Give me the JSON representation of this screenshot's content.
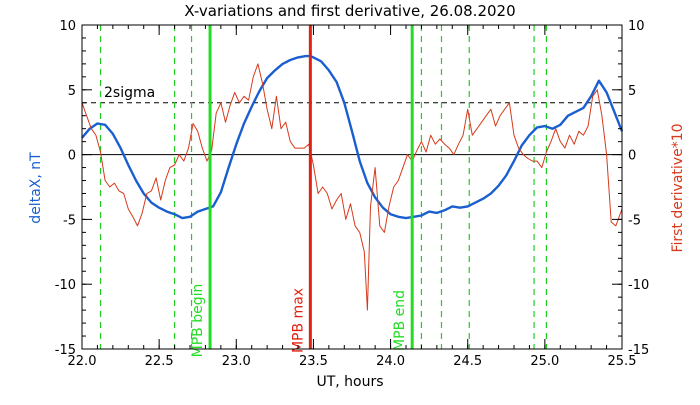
{
  "chart_data": {
    "type": "line",
    "title": "X-variations and first derivative, 26.08.2020",
    "xlabel": "UT, hours",
    "ylabel_left": "deltaX, nT",
    "ylabel_right": "First derivative*10",
    "xlim": [
      22.0,
      25.5
    ],
    "ylim": [
      -15,
      10
    ],
    "x_ticks": [
      22.0,
      22.5,
      23.0,
      23.5,
      24.0,
      24.5,
      25.0,
      25.5
    ],
    "y_ticks": [
      10,
      5,
      0,
      -5,
      -10,
      -15
    ],
    "x_tick_labels": [
      "22.0",
      "22.5",
      "23.0",
      "23.5",
      "24.0",
      "24.5",
      "25.0",
      "25.5"
    ],
    "y_tick_labels": [
      "10",
      "5",
      "0",
      "-5",
      "-10",
      "-15"
    ],
    "colors": {
      "deltaX": "#1a5fd0",
      "derivative": "#d63a1c",
      "mpb_bounds": "#22dd22",
      "mpb_max": "#e02010",
      "green_dashed": "#22cc22",
      "axes": "#000000"
    },
    "threshold": {
      "label": "2sigma",
      "value": 4.0
    },
    "zero_line": 0,
    "vertical_markers": [
      {
        "label": "MPB begin",
        "x": 22.83,
        "color": "#22dd22"
      },
      {
        "label": "MPB max",
        "x": 23.48,
        "color": "#e02010"
      },
      {
        "label": "MPB end",
        "x": 24.14,
        "color": "#22dd22"
      }
    ],
    "green_dashed_x": [
      22.12,
      22.6,
      22.71,
      22.83,
      24.14,
      24.2,
      24.33,
      24.51,
      24.93,
      25.01
    ],
    "series": [
      {
        "name": "deltaX, nT",
        "axis": "left",
        "x": [
          22.0,
          22.05,
          22.1,
          22.15,
          22.2,
          22.25,
          22.3,
          22.35,
          22.4,
          22.45,
          22.5,
          22.55,
          22.6,
          22.65,
          22.7,
          22.75,
          22.8,
          22.85,
          22.9,
          22.95,
          23.0,
          23.05,
          23.1,
          23.15,
          23.2,
          23.25,
          23.3,
          23.35,
          23.4,
          23.45,
          23.48,
          23.5,
          23.55,
          23.6,
          23.65,
          23.7,
          23.75,
          23.8,
          23.85,
          23.9,
          23.95,
          24.0,
          24.05,
          24.1,
          24.15,
          24.2,
          24.25,
          24.3,
          24.35,
          24.4,
          24.45,
          24.5,
          24.55,
          24.6,
          24.65,
          24.7,
          24.75,
          24.8,
          24.85,
          24.9,
          24.95,
          25.0,
          25.05,
          25.1,
          25.15,
          25.2,
          25.25,
          25.3,
          25.35,
          25.4,
          25.45,
          25.5
        ],
        "y": [
          1.3,
          2.0,
          2.4,
          2.3,
          1.6,
          0.5,
          -0.8,
          -2.0,
          -3.0,
          -3.7,
          -4.1,
          -4.4,
          -4.6,
          -4.9,
          -4.8,
          -4.4,
          -4.2,
          -4.0,
          -2.9,
          -1.0,
          0.8,
          2.4,
          3.7,
          4.9,
          5.9,
          6.5,
          7.0,
          7.3,
          7.5,
          7.6,
          7.6,
          7.5,
          7.2,
          6.5,
          5.6,
          4.0,
          1.8,
          -0.5,
          -2.2,
          -3.3,
          -4.1,
          -4.6,
          -4.8,
          -4.9,
          -4.8,
          -4.7,
          -4.4,
          -4.5,
          -4.3,
          -4.0,
          -4.1,
          -4.0,
          -3.7,
          -3.4,
          -3.0,
          -2.4,
          -1.6,
          -0.5,
          0.7,
          1.5,
          2.1,
          2.2,
          2.0,
          2.3,
          3.0,
          3.3,
          3.6,
          4.5,
          5.7,
          4.8,
          3.3,
          1.8
        ]
      },
      {
        "name": "First derivative*10",
        "axis": "right",
        "x": [
          22.0,
          22.03,
          22.06,
          22.09,
          22.12,
          22.15,
          22.18,
          22.21,
          22.24,
          22.27,
          22.3,
          22.33,
          22.36,
          22.39,
          22.42,
          22.45,
          22.48,
          22.51,
          22.54,
          22.57,
          22.6,
          22.63,
          22.66,
          22.69,
          22.72,
          22.75,
          22.78,
          22.81,
          22.84,
          22.87,
          22.9,
          22.93,
          22.96,
          22.99,
          23.02,
          23.05,
          23.08,
          23.11,
          23.14,
          23.17,
          23.2,
          23.23,
          23.26,
          23.29,
          23.32,
          23.35,
          23.38,
          23.41,
          23.44,
          23.47,
          23.5,
          23.53,
          23.56,
          23.59,
          23.62,
          23.65,
          23.68,
          23.71,
          23.74,
          23.77,
          23.8,
          23.83,
          23.85,
          23.87,
          23.9,
          23.93,
          23.96,
          23.99,
          24.02,
          24.05,
          24.08,
          24.11,
          24.14,
          24.17,
          24.2,
          24.23,
          24.26,
          24.29,
          24.32,
          24.35,
          24.38,
          24.41,
          24.44,
          24.47,
          24.5,
          24.53,
          24.56,
          24.59,
          24.62,
          24.65,
          24.68,
          24.71,
          24.74,
          24.77,
          24.8,
          24.83,
          24.86,
          24.89,
          24.92,
          24.95,
          24.98,
          25.01,
          25.04,
          25.07,
          25.1,
          25.13,
          25.16,
          25.19,
          25.22,
          25.25,
          25.28,
          25.31,
          25.34,
          25.37,
          25.4,
          25.43,
          25.46,
          25.5
        ],
        "y": [
          4.0,
          3.0,
          2.0,
          1.5,
          0.2,
          -2.0,
          -2.5,
          -2.2,
          -2.8,
          -3.0,
          -4.2,
          -4.8,
          -5.5,
          -4.5,
          -3.0,
          -2.8,
          -1.8,
          -3.5,
          -2.0,
          -1.0,
          -0.8,
          0.0,
          -0.5,
          0.5,
          2.4,
          1.8,
          0.5,
          -0.5,
          0.3,
          3.2,
          4.0,
          2.5,
          3.8,
          4.8,
          4.0,
          4.5,
          4.2,
          6.0,
          7.0,
          5.5,
          3.5,
          2.0,
          4.5,
          2.0,
          2.5,
          1.0,
          0.5,
          0.5,
          0.5,
          0.8,
          -0.8,
          -3.0,
          -2.5,
          -3.0,
          -4.2,
          -3.5,
          -3.0,
          -5.0,
          -3.8,
          -5.5,
          -6.0,
          -7.5,
          -12.0,
          -4.0,
          -1.0,
          -5.5,
          -6.0,
          -4.0,
          -2.5,
          -2.0,
          -1.0,
          0.0,
          -0.5,
          0.3,
          1.0,
          0.2,
          1.5,
          0.8,
          1.2,
          0.8,
          0.5,
          0.0,
          0.8,
          1.5,
          3.5,
          1.5,
          2.0,
          2.5,
          3.0,
          3.5,
          2.2,
          3.0,
          3.5,
          4.0,
          1.5,
          0.5,
          0.0,
          -0.3,
          -0.5,
          -0.5,
          -1.0,
          0.2,
          1.0,
          2.0,
          1.0,
          0.5,
          1.5,
          0.8,
          1.8,
          1.5,
          2.2,
          4.5,
          5.0,
          3.0,
          0.0,
          -5.2,
          -5.5,
          -4.2
        ]
      }
    ]
  }
}
